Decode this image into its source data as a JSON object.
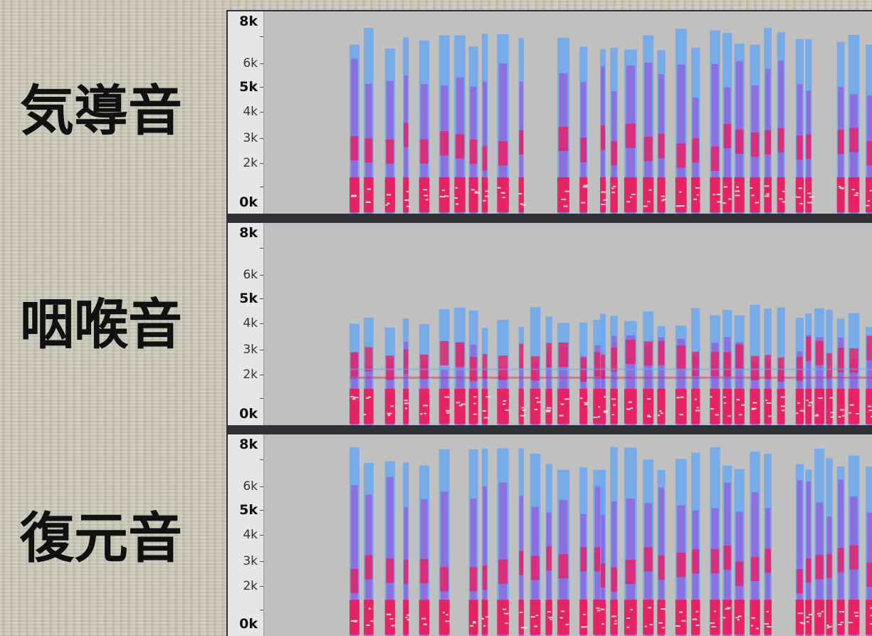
{
  "labels": {
    "air": "気導音",
    "throat": "咽喉音",
    "restored": "復元音"
  },
  "axis_ticks": [
    "8k",
    "6k",
    "5k",
    "4k",
    "3k",
    "2k",
    "0k"
  ],
  "colors": {
    "background_gray": "#c0c0c0",
    "low_energy": "#6aa8ee",
    "mid_energy": "#a040d8",
    "high_energy": "#f01a5a",
    "peak_energy": "#fff2d0"
  },
  "spectrograms": [
    {
      "name": "air",
      "frequency_range": "0k-8k"
    },
    {
      "name": "throat",
      "frequency_range": "0k-8k"
    },
    {
      "name": "restored",
      "frequency_range": "0k-8k"
    }
  ]
}
